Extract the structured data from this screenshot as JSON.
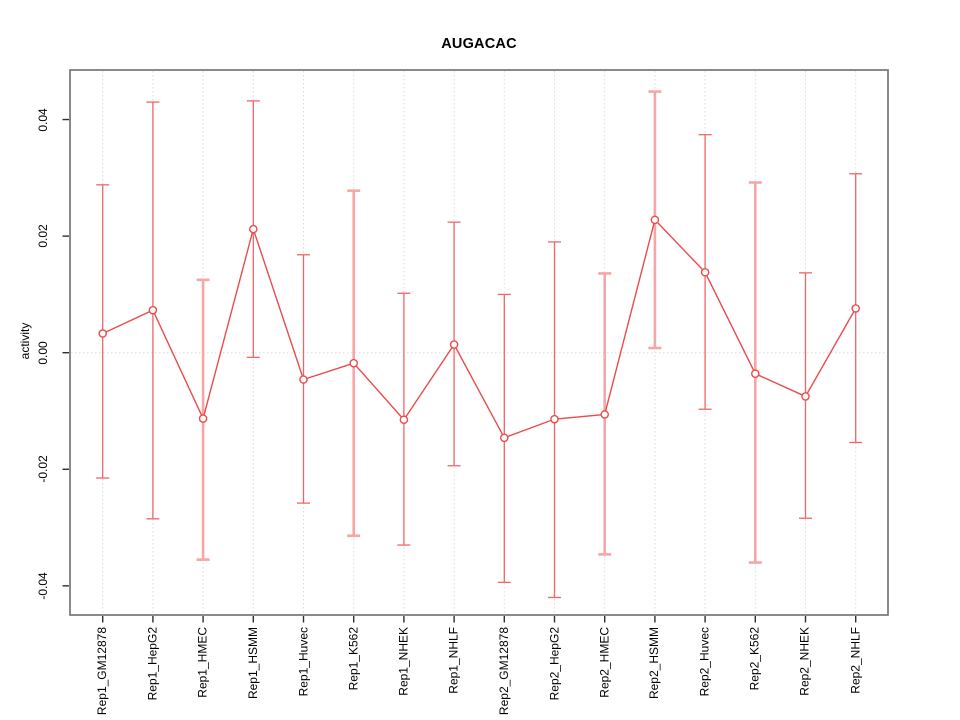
{
  "title": "AUGACAC",
  "axes": {
    "ylabel": "activity",
    "ytick_values": [
      0.04,
      0.02,
      0.0,
      -0.02,
      -0.04
    ],
    "ytick_labels": [
      "0.04",
      "0.02",
      "0.00",
      "-0.02",
      "-0.04"
    ]
  },
  "chart_data": {
    "type": "line",
    "subtype": "points-with-error-bars",
    "title": "AUGACAC",
    "xlabel": "",
    "ylabel": "activity",
    "ylim": [
      -0.045,
      0.0485
    ],
    "grid": "vertical dotted gridline per category; dotted horizontal line at y=0",
    "legend_position": "none",
    "categories": [
      "Rep1_GM12878",
      "Rep1_HepG2",
      "Rep1_HMEC",
      "Rep1_HSMM",
      "Rep1_Huvec",
      "Rep1_K562",
      "Rep1_NHEK",
      "Rep1_NHLF",
      "Rep2_GM12878",
      "Rep2_HepG2",
      "Rep2_HMEC",
      "Rep2_HSMM",
      "Rep2_Huvec",
      "Rep2_K562",
      "Rep2_NHEK",
      "Rep2_NHLF"
    ],
    "series": [
      {
        "name": "activity",
        "marker": "open-circle",
        "values": [
          0.0033,
          0.0073,
          -0.0113,
          0.0212,
          -0.0046,
          -0.0018,
          -0.0115,
          0.0014,
          -0.0146,
          -0.0114,
          -0.0106,
          0.0228,
          0.0138,
          -0.0036,
          -0.0075,
          0.0076
        ],
        "err_high": [
          0.0288,
          0.043,
          0.0125,
          0.0432,
          0.0168,
          0.0278,
          0.0102,
          0.0224,
          0.01,
          0.019,
          0.0136,
          0.0448,
          0.0374,
          0.0292,
          0.0137,
          0.0307
        ],
        "err_low": [
          -0.0215,
          -0.0285,
          -0.0355,
          -0.0008,
          -0.0258,
          -0.0314,
          -0.033,
          -0.0194,
          -0.0394,
          -0.042,
          -0.0346,
          0.0008,
          -0.0097,
          -0.036,
          -0.0284,
          -0.0154
        ],
        "bar_style": [
          "thin",
          "thin",
          "thick",
          "thin",
          "thin",
          "thick",
          "thin",
          "thin",
          "thin",
          "thin",
          "thick",
          "thick",
          "thin",
          "thick",
          "thin",
          "thin"
        ]
      }
    ],
    "colors": {
      "line": "#e94c4c",
      "point": "#e94c4c",
      "error_bar_thin": "#ef6666",
      "error_bar_thick": "#f6a6a6",
      "gridline": "#dcdcdc",
      "plot_border": "#767676",
      "tick": "#2e2e2e",
      "text": "#000000",
      "background": "#ffffff"
    }
  }
}
